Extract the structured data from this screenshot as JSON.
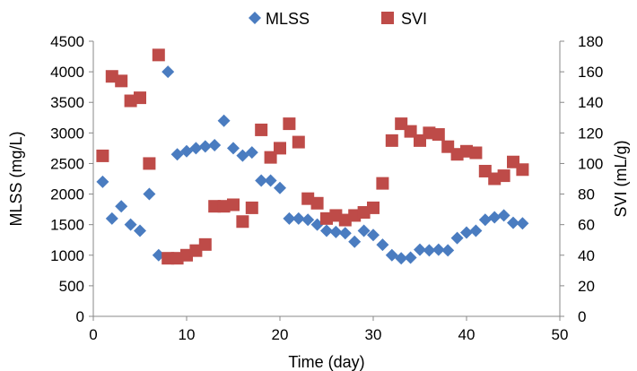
{
  "chart_data": {
    "type": "scatter",
    "title": "",
    "xlabel": "Time (day)",
    "ylabel": "MLSS (mg/L)",
    "y2label": "SVI (mL/g)",
    "xlim": [
      0,
      50
    ],
    "ylim": [
      0,
      4500
    ],
    "y2lim": [
      0,
      180
    ],
    "x_ticks": [
      "0",
      "10",
      "20",
      "30",
      "40",
      "50"
    ],
    "y_ticks": [
      "0",
      "500",
      "1000",
      "1500",
      "2000",
      "2500",
      "3000",
      "3500",
      "4000",
      "4500"
    ],
    "y2_ticks": [
      "0",
      "20",
      "40",
      "60",
      "80",
      "100",
      "120",
      "140",
      "160",
      "180"
    ],
    "grid": false,
    "legend_position": "top-center",
    "series": [
      {
        "name": "MLSS",
        "axis": "left",
        "marker": "diamond",
        "color": "#4a7cc0",
        "x": [
          1,
          2,
          3,
          4,
          5,
          6,
          7,
          8,
          9,
          10,
          11,
          12,
          13,
          14,
          15,
          16,
          17,
          18,
          19,
          20,
          21,
          22,
          23,
          24,
          25,
          26,
          27,
          28,
          29,
          30,
          31,
          32,
          33,
          34,
          35,
          36,
          37,
          38,
          39,
          40,
          41,
          42,
          43,
          44,
          45,
          46
        ],
        "y": [
          2200,
          1600,
          1800,
          1500,
          1400,
          2000,
          1000,
          4000,
          2650,
          2700,
          2750,
          2780,
          2800,
          3200,
          2750,
          2630,
          2680,
          2220,
          2220,
          2100,
          1600,
          1600,
          1580,
          1500,
          1400,
          1380,
          1360,
          1220,
          1400,
          1330,
          1170,
          1000,
          950,
          960,
          1090,
          1080,
          1090,
          1080,
          1280,
          1370,
          1400,
          1580,
          1620,
          1650,
          1530,
          1520
        ]
      },
      {
        "name": "SVI",
        "axis": "right",
        "marker": "square",
        "color": "#be4b48",
        "x": [
          1,
          2,
          3,
          4,
          5,
          6,
          7,
          8,
          9,
          10,
          11,
          12,
          13,
          14,
          15,
          16,
          17,
          18,
          19,
          20,
          21,
          22,
          23,
          24,
          25,
          26,
          27,
          28,
          29,
          30,
          31,
          32,
          33,
          34,
          35,
          36,
          37,
          38,
          39,
          40,
          41,
          42,
          43,
          44,
          45,
          46
        ],
        "y": [
          105,
          157,
          154,
          141,
          143,
          100,
          171,
          38,
          38,
          40,
          43,
          47,
          72,
          72,
          73,
          62,
          71,
          122,
          104,
          110,
          126,
          114,
          77,
          74,
          64,
          66,
          63,
          66,
          68,
          71,
          87,
          115,
          126,
          121,
          115,
          120,
          119,
          111,
          106,
          108,
          107,
          95,
          90,
          92,
          101,
          96
        ]
      }
    ]
  }
}
